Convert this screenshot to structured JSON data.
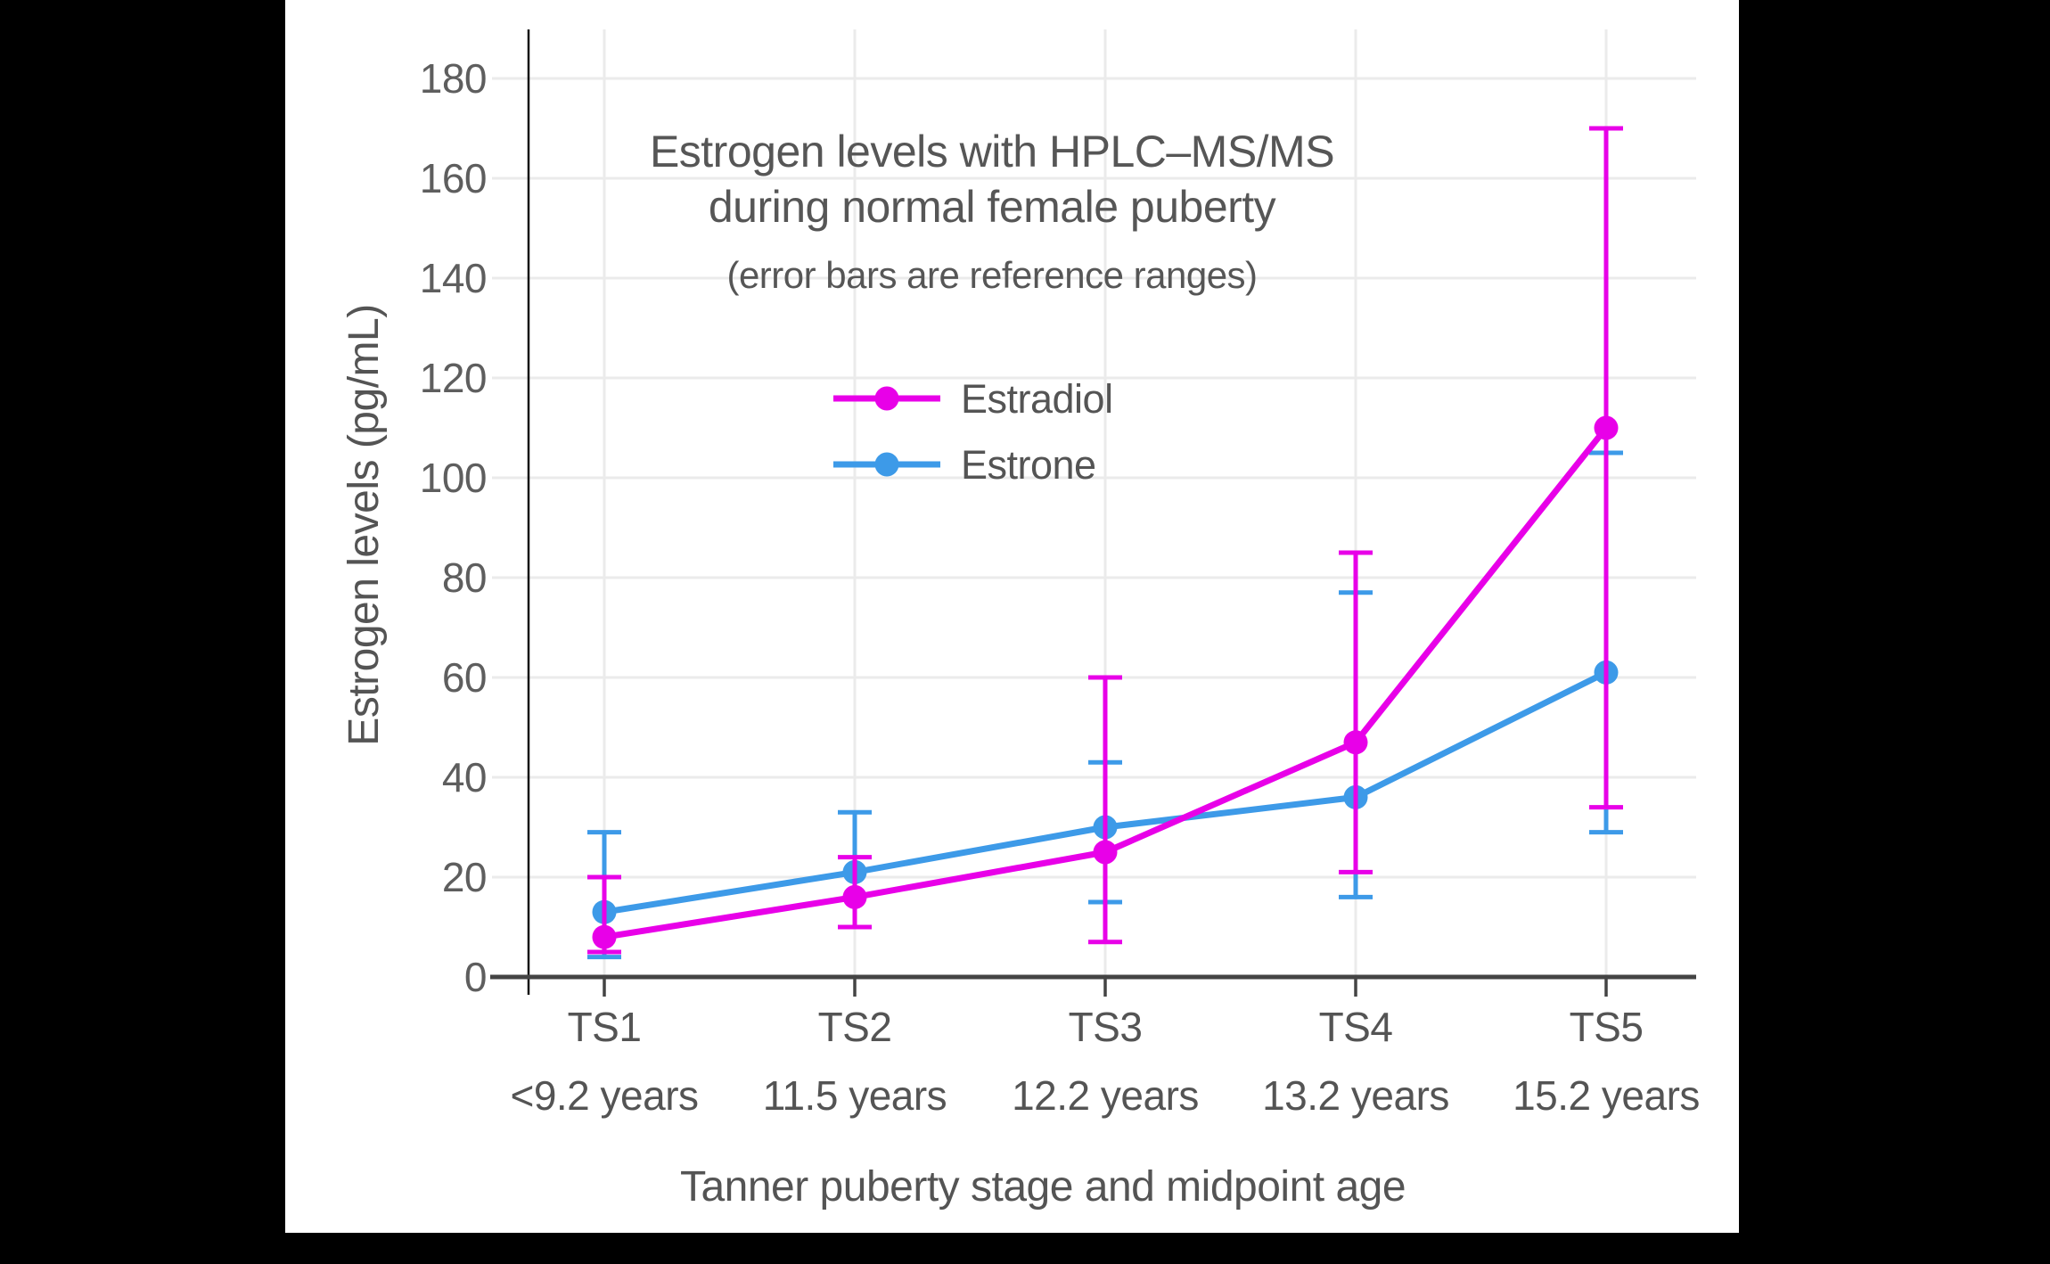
{
  "page": {
    "background": "#000000"
  },
  "chart_data": {
    "type": "line",
    "title": "Estrogen levels with HPLC–MS/MS during normal female puberty",
    "title_lines": [
      "Estrogen levels with HPLC–MS/MS",
      "during normal female puberty"
    ],
    "subtitle": "(error bars are reference ranges)",
    "xlabel": "Tanner puberty stage and midpoint age",
    "ylabel": "Estrogen levels (pg/mL)",
    "units": "pg/mL",
    "categories": [
      "TS1",
      "TS2",
      "TS3",
      "TS4",
      "TS5"
    ],
    "category_sublabels": [
      "<9.2 years",
      "11.5 years",
      "12.2 years",
      "13.2 years",
      "15.2 years"
    ],
    "ylim": [
      0,
      190
    ],
    "yticks": [
      0,
      20,
      40,
      60,
      80,
      100,
      120,
      140,
      160,
      180
    ],
    "grid": true,
    "legend_position": "inside-top-center",
    "series": [
      {
        "name": "Estradiol",
        "color": "#E800E8",
        "values": [
          8,
          16,
          25,
          47,
          110
        ],
        "error_low": [
          5,
          10,
          7,
          21,
          34
        ],
        "error_high": [
          20,
          24,
          60,
          85,
          170
        ]
      },
      {
        "name": "Estrone",
        "color": "#3D9AE8",
        "values": [
          13,
          21,
          30,
          36,
          61
        ],
        "error_low": [
          4,
          10,
          15,
          16,
          29
        ],
        "error_high": [
          29,
          33,
          43,
          77,
          105
        ]
      }
    ]
  },
  "colors": {
    "plot_background": "#ffffff",
    "page_background": "#000000",
    "grid": "#EBEBEB",
    "x_axis": "#444444",
    "y_axis_line": "#141414",
    "text": "#545454"
  }
}
